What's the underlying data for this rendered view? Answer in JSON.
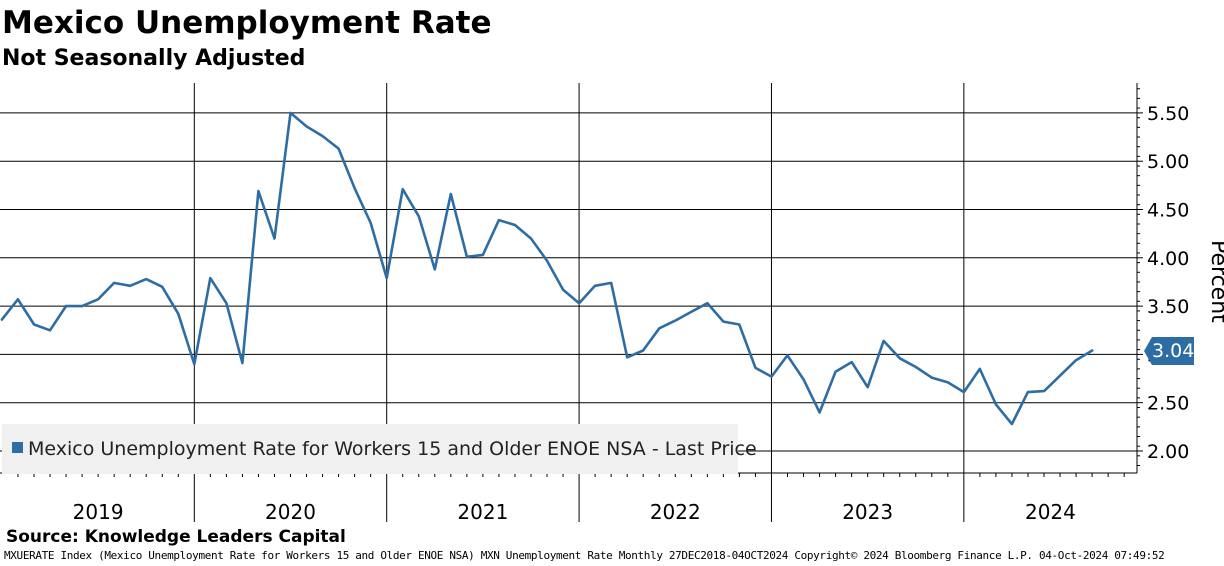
{
  "header": {
    "title": "Mexico Unemployment Rate",
    "subtitle": "Not Seasonally Adjusted"
  },
  "source": "Source: Knowledge Leaders Capital",
  "footer": "MXUERATE Index (Mexico Unemployment Rate for Workers 15 and Older ENOE NSA) MXN Unemployment Rate  Monthly 27DEC2018-04OCT2024 Copyright© 2024 Bloomberg Finance L.P. 04-Oct-2024 07:49:52",
  "colors": {
    "series": "#2e6da4",
    "grid": "#000000",
    "legend_bg": "#f0f0f0"
  },
  "chart_data": {
    "type": "line",
    "title": "Mexico Unemployment Rate",
    "subtitle": "Not Seasonally Adjusted",
    "ylabel": "Percent",
    "ylim": [
      1.75,
      5.9
    ],
    "yticks": [
      "2.00",
      "2.50",
      "3.00",
      "3.50",
      "4.00",
      "4.50",
      "5.00",
      "5.50"
    ],
    "xlim": [
      2018.99,
      2024.9
    ],
    "years": [
      "2019",
      "2020",
      "2021",
      "2022",
      "2023",
      "2024"
    ],
    "legend": "Mexico Unemployment Rate for Workers 15 and Older ENOE NSA - Last Price",
    "last_value": "3.04",
    "series": [
      {
        "name": "Mexico Unemployment Rate for Workers 15 and Older ENOE NSA",
        "x": [
          2019.0,
          2019.083,
          2019.167,
          2019.25,
          2019.333,
          2019.417,
          2019.5,
          2019.583,
          2019.667,
          2019.75,
          2019.833,
          2019.917,
          2020.0,
          2020.083,
          2020.167,
          2020.25,
          2020.333,
          2020.417,
          2020.5,
          2020.583,
          2020.667,
          2020.75,
          2020.833,
          2020.917,
          2021.0,
          2021.083,
          2021.167,
          2021.25,
          2021.333,
          2021.417,
          2021.5,
          2021.583,
          2021.667,
          2021.75,
          2021.833,
          2021.917,
          2022.0,
          2022.083,
          2022.167,
          2022.25,
          2022.333,
          2022.417,
          2022.5,
          2022.583,
          2022.667,
          2022.75,
          2022.833,
          2022.917,
          2023.0,
          2023.083,
          2023.167,
          2023.25,
          2023.333,
          2023.417,
          2023.5,
          2023.583,
          2023.667,
          2023.75,
          2023.833,
          2023.917,
          2024.0,
          2024.083,
          2024.167,
          2024.25,
          2024.333,
          2024.417,
          2024.5,
          2024.583,
          2024.667
        ],
        "values": [
          3.36,
          3.57,
          3.31,
          3.25,
          3.5,
          3.5,
          3.57,
          3.74,
          3.71,
          3.78,
          3.7,
          3.42,
          2.9,
          3.79,
          3.53,
          2.91,
          4.69,
          4.2,
          5.5,
          5.36,
          5.26,
          5.13,
          4.72,
          4.36,
          3.79,
          4.71,
          4.43,
          3.88,
          4.66,
          4.01,
          4.03,
          4.39,
          4.34,
          4.2,
          3.97,
          3.67,
          3.53,
          3.71,
          3.74,
          2.97,
          3.04,
          3.27,
          3.35,
          3.44,
          3.53,
          3.34,
          3.31,
          2.86,
          2.77,
          2.99,
          2.74,
          2.4,
          2.82,
          2.92,
          2.66,
          3.14,
          2.96,
          2.87,
          2.76,
          2.71,
          2.61,
          2.85,
          2.48,
          2.28,
          2.61,
          2.62,
          2.78,
          2.94,
          3.04
        ]
      }
    ]
  }
}
